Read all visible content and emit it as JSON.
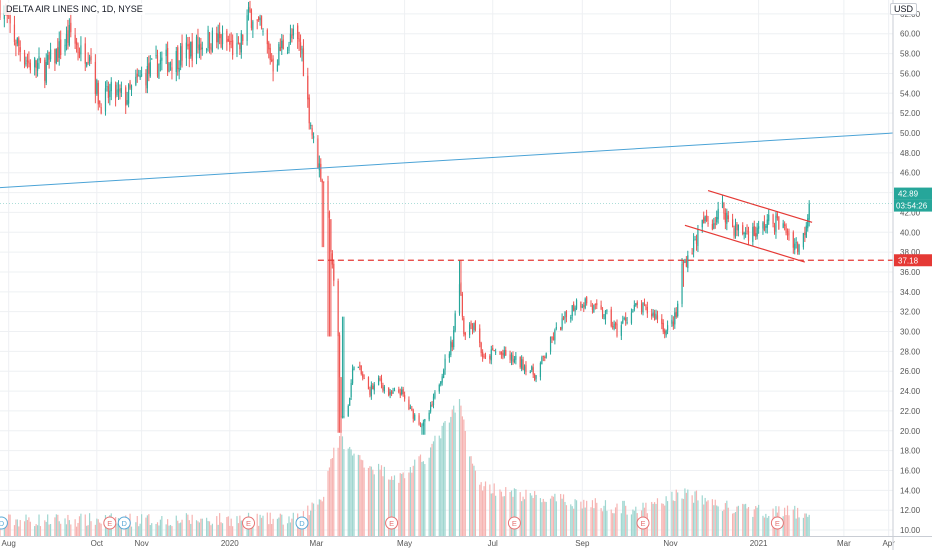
{
  "header": {
    "symbol_title": "DELTA AIR LINES INC, 1D, NYSE",
    "currency": "USD"
  },
  "price_labels": {
    "last": "42.89",
    "countdown": "03:54:26",
    "level": "37.18"
  },
  "colors": {
    "up": "#26a69a",
    "down": "#ef5350",
    "trendline": "#4ba3d6",
    "channel": "#e53935",
    "grid": "#eef0f3",
    "axis_text": "#555555",
    "volume_up": "#9fd6d0",
    "volume_down": "#f6b3b1"
  },
  "event_markers": [
    {
      "label": "D",
      "kind": "dividend",
      "date": "2019-07-27"
    },
    {
      "label": "E",
      "kind": "earnings",
      "date": "2019-10-10"
    },
    {
      "label": "D",
      "kind": "dividend",
      "date": "2019-10-20"
    },
    {
      "label": "E",
      "kind": "earnings",
      "date": "2020-01-14"
    },
    {
      "label": "D",
      "kind": "dividend",
      "date": "2020-02-20"
    },
    {
      "label": "E",
      "kind": "earnings",
      "date": "2020-04-22"
    },
    {
      "label": "E",
      "kind": "earnings",
      "date": "2020-07-16"
    },
    {
      "label": "E",
      "kind": "earnings",
      "date": "2020-10-13"
    },
    {
      "label": "E",
      "kind": "earnings",
      "date": "2021-01-14"
    }
  ],
  "chart_data": {
    "type": "candlestick",
    "title": "DELTA AIR LINES INC, 1D, NYSE",
    "ylabel": "USD",
    "xlim": [
      "2019-07-26",
      "2021-04-04"
    ],
    "ylim": [
      9.4,
      63.4
    ],
    "x_ticks": [
      "Aug",
      "Oct",
      "Nov",
      "2020",
      "Mar",
      "May",
      "Jul",
      "Sep",
      "Nov",
      "2021",
      "Mar",
      "Apr"
    ],
    "x_tick_dates": [
      "2019-08-01",
      "2019-10-01",
      "2019-11-01",
      "2020-01-01",
      "2020-03-01",
      "2020-05-01",
      "2020-07-01",
      "2020-09-01",
      "2020-11-01",
      "2021-01-01",
      "2021-03-01",
      "2021-04-01"
    ],
    "y_ticks": [
      "62.00",
      "60.00",
      "58.00",
      "56.00",
      "54.00",
      "52.00",
      "50.00",
      "48.00",
      "46.00",
      "44.00",
      "42.00",
      "40.00",
      "38.00",
      "36.00",
      "34.00",
      "32.00",
      "30.00",
      "28.00",
      "26.00",
      "24.00",
      "22.00",
      "20.00",
      "18.00",
      "16.00",
      "14.00",
      "12.00",
      "10.00"
    ],
    "grid": true,
    "price_path": [
      [
        "2019-07-26",
        63.0
      ],
      [
        "2019-08-05",
        59.5
      ],
      [
        "2019-08-15",
        57.0
      ],
      [
        "2019-08-26",
        56.5
      ],
      [
        "2019-09-06",
        58.5
      ],
      [
        "2019-09-13",
        60.0
      ],
      [
        "2019-09-20",
        58.0
      ],
      [
        "2019-09-26",
        58.4
      ],
      [
        "2019-09-30",
        55.0
      ],
      [
        "2019-10-03",
        53.0
      ],
      [
        "2019-10-11",
        54.0
      ],
      [
        "2019-10-21",
        53.5
      ],
      [
        "2019-10-31",
        55.5
      ],
      [
        "2019-11-05",
        56.0
      ],
      [
        "2019-11-13",
        57.0
      ],
      [
        "2019-11-24",
        57.5
      ],
      [
        "2019-12-06",
        58.5
      ],
      [
        "2019-12-18",
        59.5
      ],
      [
        "2019-12-31",
        59.0
      ],
      [
        "2020-01-07",
        58.0
      ],
      [
        "2020-01-13",
        61.5
      ],
      [
        "2020-01-17",
        62.0
      ],
      [
        "2020-01-23",
        60.0
      ],
      [
        "2020-01-31",
        57.0
      ],
      [
        "2020-02-07",
        59.0
      ],
      [
        "2020-02-14",
        59.5
      ],
      [
        "2020-02-20",
        58.2
      ],
      [
        "2020-02-24",
        53.0
      ],
      [
        "2020-02-28",
        49.0
      ],
      [
        "2020-03-04",
        46.0
      ],
      [
        "2020-03-09",
        43.0
      ],
      [
        "2020-03-12",
        36.0
      ],
      [
        "2020-03-16",
        30.0
      ],
      [
        "2020-03-18",
        21.0
      ],
      [
        "2020-03-23",
        22.5
      ],
      [
        "2020-03-27",
        27.0
      ],
      [
        "2020-03-31",
        26.0
      ],
      [
        "2020-04-06",
        24.0
      ],
      [
        "2020-04-14",
        25.0
      ],
      [
        "2020-04-21",
        23.5
      ],
      [
        "2020-04-28",
        24.0
      ],
      [
        "2020-05-05",
        22.0
      ],
      [
        "2020-05-14",
        20.5
      ],
      [
        "2020-05-20",
        22.5
      ],
      [
        "2020-05-27",
        26.0
      ],
      [
        "2020-06-03",
        29.0
      ],
      [
        "2020-06-08",
        35.5
      ],
      [
        "2020-06-11",
        30.0
      ],
      [
        "2020-06-18",
        31.0
      ],
      [
        "2020-06-25",
        27.0
      ],
      [
        "2020-07-02",
        28.0
      ],
      [
        "2020-07-10",
        27.5
      ],
      [
        "2020-07-17",
        27.0
      ],
      [
        "2020-07-24",
        26.5
      ],
      [
        "2020-07-31",
        25.5
      ],
      [
        "2020-08-07",
        28.0
      ],
      [
        "2020-08-14",
        30.0
      ],
      [
        "2020-08-21",
        31.5
      ],
      [
        "2020-08-28",
        33.0
      ],
      [
        "2020-09-04",
        33.0
      ],
      [
        "2020-09-11",
        32.0
      ],
      [
        "2020-09-18",
        31.5
      ],
      [
        "2020-09-25",
        30.0
      ],
      [
        "2020-10-02",
        31.5
      ],
      [
        "2020-10-09",
        32.5
      ],
      [
        "2020-10-16",
        32.0
      ],
      [
        "2020-10-23",
        31.5
      ],
      [
        "2020-10-29",
        30.0
      ],
      [
        "2020-11-05",
        31.5
      ],
      [
        "2020-11-09",
        36.5
      ],
      [
        "2020-11-16",
        38.5
      ],
      [
        "2020-11-24",
        41.0
      ],
      [
        "2020-11-30",
        41.0
      ],
      [
        "2020-12-07",
        42.5
      ],
      [
        "2020-12-14",
        40.5
      ],
      [
        "2020-12-21",
        40.0
      ],
      [
        "2020-12-31",
        40.0
      ],
      [
        "2021-01-07",
        41.0
      ],
      [
        "2021-01-14",
        41.0
      ],
      [
        "2021-01-21",
        40.0
      ],
      [
        "2021-01-28",
        38.5
      ],
      [
        "2021-02-01",
        39.5
      ],
      [
        "2021-02-05",
        42.89
      ]
    ],
    "volume_path": [
      [
        "2019-07-26",
        10.7
      ],
      [
        "2020-02-20",
        10.8
      ],
      [
        "2020-02-25",
        11.8
      ],
      [
        "2020-03-05",
        13.0
      ],
      [
        "2020-03-12",
        17.5
      ],
      [
        "2020-03-18",
        19.0
      ],
      [
        "2020-03-25",
        17.5
      ],
      [
        "2020-04-10",
        16.0
      ],
      [
        "2020-04-28",
        15.0
      ],
      [
        "2020-05-15",
        17.0
      ],
      [
        "2020-06-08",
        22.5
      ],
      [
        "2020-06-20",
        14.5
      ],
      [
        "2020-07-10",
        13.5
      ],
      [
        "2020-08-10",
        12.8
      ],
      [
        "2020-09-15",
        12.2
      ],
      [
        "2020-10-15",
        11.8
      ],
      [
        "2020-11-09",
        13.5
      ],
      [
        "2020-12-15",
        11.8
      ],
      [
        "2021-02-05",
        11.4
      ]
    ],
    "trendline": {
      "start": [
        "2019-07-26",
        44.5
      ],
      "end": [
        "2021-04-04",
        50.0
      ]
    },
    "horizontal_level": {
      "value": 37.18,
      "from": "2020-03-02"
    },
    "channel": {
      "upper": [
        [
          "2020-11-27",
          44.2
        ],
        [
          "2021-02-07",
          41.0
        ]
      ],
      "lower": [
        [
          "2020-11-11",
          40.7
        ],
        [
          "2021-02-02",
          37.0
        ]
      ]
    },
    "spikes": [
      [
        "2020-03-06",
        38.5
      ],
      [
        "2020-03-10",
        29.5
      ],
      [
        "2020-03-17",
        19.8
      ],
      [
        "2020-03-20",
        31.5
      ],
      [
        "2020-06-08",
        37.2
      ],
      [
        "2020-05-14",
        19.6
      ],
      [
        "2020-11-09",
        34.5
      ]
    ],
    "last_price": 42.89
  }
}
